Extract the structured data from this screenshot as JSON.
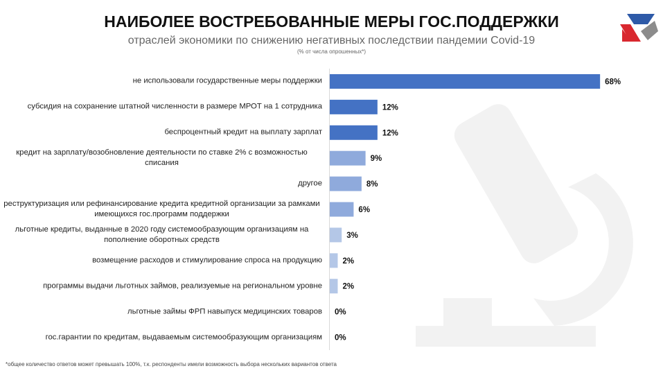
{
  "title": "НАИБОЛЕЕ ВОСТРЕБОВАННЫЕ МЕРЫ ГОС.ПОДДЕРЖКИ",
  "subtitle": "отраслей экономики по снижению негативных последствии пандемии Covid-19",
  "note": "(% от числа опрошенных*)",
  "footnote": "*общее количество ответов  может превышать 100%, т.к. респонденты имели возможность выбора нескольких вариантов ответа",
  "chart_data": {
    "type": "hbar",
    "categories": [
      "не использовали государственные меры поддержки",
      "субсидия на сохранение штатной численности в размере МРОТ на 1 сотрудника",
      "беспроцентный кредит на выплату зарплат",
      "кредит на зарплату/возобновление деятельности по ставке 2% с возможностью списания",
      "другое",
      "реструктуризация или рефинансирование кредита кредитной организации за рамками имеющихся гос.программ поддержки",
      "льготные кредиты, выданные в 2020 году системообразующим организациям на пополнение оборотных средств",
      "возмещение расходов и стимулирование спроса на продукцию",
      "программы выдачи льготных займов, реализуемые на региональном уровне",
      "льготные займы ФРП навыпуск медицинских товаров",
      "гос.гарантии по кредитам, выдаваемым системообразующим организациям"
    ],
    "values": [
      68,
      12,
      12,
      9,
      8,
      6,
      3,
      2,
      2,
      0,
      0
    ],
    "value_labels": [
      "68%",
      "12%",
      "12%",
      "9%",
      "8%",
      "6%",
      "3%",
      "2%",
      "2%",
      "0%",
      "0%"
    ],
    "colors": [
      "#4472c4",
      "#4472c4",
      "#4472c4",
      "#8faadc",
      "#8faadc",
      "#8faadc",
      "#b4c7e7",
      "#b4c7e7",
      "#b4c7e7",
      "#b4c7e7",
      "#b4c7e7"
    ],
    "xlim": [
      0,
      80
    ]
  }
}
